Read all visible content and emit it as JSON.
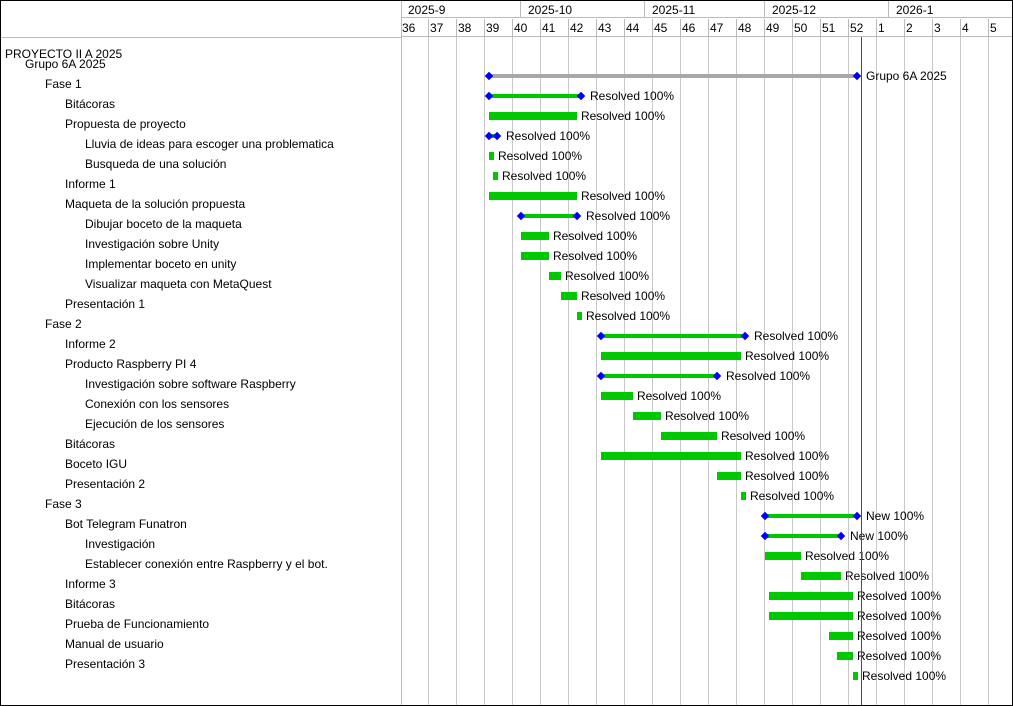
{
  "chart_data": {
    "type": "gantt",
    "timeline_start": "2025-09-01",
    "months": [
      "2025-9",
      "2025-10",
      "2025-11",
      "2025-12",
      "2026-1"
    ],
    "weeks": [
      "36",
      "37",
      "38",
      "39",
      "40",
      "41",
      "42",
      "43",
      "44",
      "45",
      "46",
      "47",
      "48",
      "49",
      "50",
      "51",
      "52",
      "1",
      "2",
      "3",
      "4",
      "5"
    ],
    "today": "2025-12-25",
    "colors": {
      "done_bar": "#00c800",
      "parent_bar_grey": "#a8a8a8",
      "milestone": "#0000ff",
      "today_line": "#ff0000",
      "grid": "#c8c8c8"
    },
    "project": "PROYECTO II A 2025",
    "tasks": [
      {
        "name": "Grupo 6A 2025",
        "level": 1,
        "parent": true,
        "grey": true,
        "start": "2025-09-23",
        "end": "2025-12-23",
        "label": "Grupo 6A 2025"
      },
      {
        "name": "Fase 1",
        "level": 2,
        "parent": true,
        "start": "2025-09-23",
        "end": "2025-10-15",
        "label": "Resolved 100%"
      },
      {
        "name": "Bitácoras",
        "level": 3,
        "start": "2025-09-23",
        "end": "2025-10-14",
        "label": "Resolved 100%"
      },
      {
        "name": "Propuesta de proyecto",
        "level": 3,
        "parent": true,
        "start": "2025-09-23",
        "end": "2025-09-24",
        "label": "Resolved 100%"
      },
      {
        "name": "Lluvia de ideas para escoger una problematica",
        "level": 4,
        "start": "2025-09-23",
        "end": "2025-09-23",
        "label": "Resolved 100%"
      },
      {
        "name": "Busqueda de una solución",
        "level": 4,
        "start": "2025-09-24",
        "end": "2025-09-24",
        "label": "Resolved 100%"
      },
      {
        "name": "Informe 1",
        "level": 3,
        "start": "2025-09-23",
        "end": "2025-10-14",
        "label": "Resolved 100%"
      },
      {
        "name": "Maqueta de la solución propuesta",
        "level": 3,
        "parent": true,
        "start": "2025-10-01",
        "end": "2025-10-14",
        "label": "Resolved 100%"
      },
      {
        "name": "Dibujar boceto de la maqueta",
        "level": 4,
        "start": "2025-10-01",
        "end": "2025-10-07",
        "label": "Resolved 100%"
      },
      {
        "name": "Investigación sobre Unity",
        "level": 4,
        "start": "2025-10-01",
        "end": "2025-10-07",
        "label": "Resolved 100%"
      },
      {
        "name": "Implementar boceto en unity",
        "level": 4,
        "start": "2025-10-08",
        "end": "2025-10-10",
        "label": "Resolved 100%"
      },
      {
        "name": "Visualizar maqueta con MetaQuest",
        "level": 4,
        "start": "2025-10-11",
        "end": "2025-10-14",
        "label": "Resolved 100%"
      },
      {
        "name": "Presentación 1",
        "level": 3,
        "start": "2025-10-15",
        "end": "2025-10-15",
        "label": "Resolved 100%"
      },
      {
        "name": "Fase 2",
        "level": 2,
        "parent": true,
        "start": "2025-10-21",
        "end": "2025-11-25",
        "label": "Resolved 100%"
      },
      {
        "name": "Informe 2",
        "level": 3,
        "start": "2025-10-21",
        "end": "2025-11-24",
        "label": "Resolved 100%"
      },
      {
        "name": "Producto Raspberry PI 4",
        "level": 3,
        "parent": true,
        "start": "2025-10-21",
        "end": "2025-11-18",
        "label": "Resolved 100%"
      },
      {
        "name": "Investigación sobre software Raspberry",
        "level": 4,
        "start": "2025-10-21",
        "end": "2025-10-28",
        "label": "Resolved 100%"
      },
      {
        "name": "Conexión con los sensores",
        "level": 4,
        "start": "2025-10-29",
        "end": "2025-11-04",
        "label": "Resolved 100%"
      },
      {
        "name": "Ejecución de los sensores",
        "level": 4,
        "start": "2025-11-05",
        "end": "2025-11-18",
        "label": "Resolved 100%"
      },
      {
        "name": "Bitácoras",
        "level": 3,
        "start": "2025-10-21",
        "end": "2025-11-24",
        "label": "Resolved 100%"
      },
      {
        "name": "Boceto IGU",
        "level": 3,
        "start": "2025-11-19",
        "end": "2025-11-24",
        "label": "Resolved 100%"
      },
      {
        "name": "Presentación 2",
        "level": 3,
        "start": "2025-11-25",
        "end": "2025-11-25",
        "label": "Resolved 100%"
      },
      {
        "name": "Fase 3",
        "level": 2,
        "parent": true,
        "start": "2025-12-01",
        "end": "2025-12-23",
        "label": "New 100%"
      },
      {
        "name": "Bot Telegram Funatron",
        "level": 3,
        "parent": true,
        "start": "2025-12-01",
        "end": "2025-12-19",
        "label": "New 100%"
      },
      {
        "name": "Investigación",
        "level": 4,
        "start": "2025-12-01",
        "end": "2025-12-09",
        "label": "Resolved 100%"
      },
      {
        "name": "Establecer conexión entre Raspberry y el bot.",
        "level": 4,
        "start": "2025-12-10",
        "end": "2025-12-19",
        "label": "Resolved 100%"
      },
      {
        "name": "Informe 3",
        "level": 3,
        "start": "2025-12-02",
        "end": "2025-12-22",
        "label": "Resolved 100%"
      },
      {
        "name": "Bitácoras",
        "level": 3,
        "start": "2025-12-02",
        "end": "2025-12-22",
        "label": "Resolved 100%"
      },
      {
        "name": "Prueba de Funcionamiento",
        "level": 3,
        "start": "2025-12-17",
        "end": "2025-12-22",
        "label": "Resolved 100%"
      },
      {
        "name": "Manual de usuario",
        "level": 3,
        "start": "2025-12-19",
        "end": "2025-12-22",
        "label": "Resolved 100%"
      },
      {
        "name": "Presentación 3",
        "level": 3,
        "start": "2025-12-23",
        "end": "2025-12-23",
        "label": "Resolved 100%"
      }
    ]
  }
}
